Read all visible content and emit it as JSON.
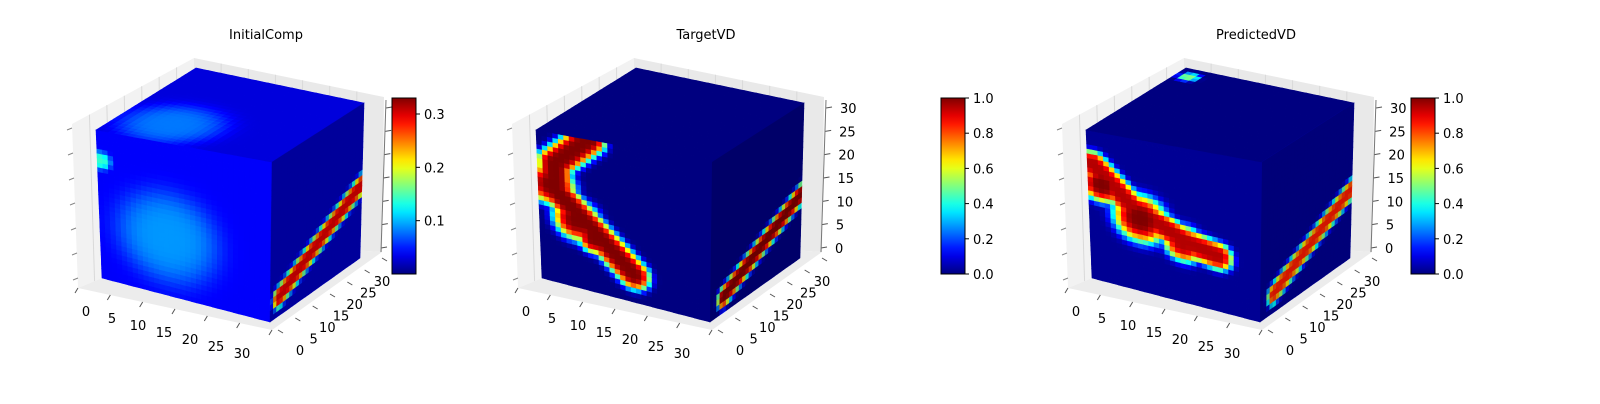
{
  "chart_data": [
    {
      "type": "heatmap",
      "title": "InitialComp",
      "colormap": "jet",
      "colorbar": {
        "min": 0,
        "max": 0.33,
        "ticks": [
          "0.1",
          "0.2",
          "0.3"
        ],
        "tick_values": [
          0.1,
          0.2,
          0.3
        ]
      },
      "x_ticks": [
        "0",
        "5",
        "10",
        "15",
        "20",
        "25",
        "30"
      ],
      "y_ticks": [
        "0",
        "5",
        "10",
        "15",
        "20",
        "25",
        "30"
      ],
      "z_ticks": [],
      "xlim": [
        0,
        32
      ],
      "ylim": [
        0,
        32
      ],
      "zlim": [
        0,
        32
      ],
      "surfaces": {
        "front_base_value": 0.04,
        "front_blobs": [
          {
            "u": 0.4,
            "v": 0.38,
            "r": 0.3,
            "value": 0.09
          },
          {
            "u": 0.02,
            "v": 0.8,
            "r": 0.06,
            "value": 0.14
          }
        ],
        "front_band": null,
        "top_base_value": 0.03,
        "top_blobs": [
          {
            "u": 0.3,
            "v": 0.25,
            "r": 0.28,
            "value": 0.08
          }
        ],
        "right_base_value": 0.02,
        "right_band": {
          "u0": 0.1,
          "v0": 0.12,
          "u1": 1.0,
          "v1": 0.48,
          "width": 0.07,
          "value": 0.3
        }
      }
    },
    {
      "type": "heatmap",
      "title": "TargetVD",
      "colormap": "jet",
      "colorbar": {
        "min": 0,
        "max": 1.0,
        "ticks": [
          "0.0",
          "0.2",
          "0.4",
          "0.6",
          "0.8",
          "1.0"
        ],
        "tick_values": [
          0,
          0.2,
          0.4,
          0.6,
          0.8,
          1.0
        ]
      },
      "x_ticks": [
        "0",
        "5",
        "10",
        "15",
        "20",
        "25",
        "30"
      ],
      "y_ticks": [
        "0",
        "5",
        "10",
        "15",
        "20",
        "25",
        "30"
      ],
      "z_ticks": [
        "0",
        "5",
        "10",
        "15",
        "20",
        "25",
        "30"
      ],
      "xlim": [
        0,
        32
      ],
      "ylim": [
        0,
        32
      ],
      "zlim": [
        0,
        32
      ],
      "surfaces": {
        "front_base_value": 0.0,
        "front_blobs": [
          {
            "u": 0.08,
            "v": 0.65,
            "r": 0.14,
            "value": 1.0
          },
          {
            "u": 0.22,
            "v": 0.45,
            "r": 0.14,
            "value": 1.0
          },
          {
            "u": 0.32,
            "v": 0.35,
            "r": 0.1,
            "value": 1.0
          }
        ],
        "front_band": {
          "points": [
            [
              0.3,
              1.0
            ],
            [
              0.1,
              0.8
            ],
            [
              0.1,
              0.62
            ],
            [
              0.3,
              0.42
            ],
            [
              0.55,
              0.18
            ]
          ],
          "width": 0.1,
          "value": 1.0
        },
        "top_base_value": 0.0,
        "top_blobs": [],
        "right_base_value": 0.0,
        "right_band": {
          "u0": 0.15,
          "v0": 0.1,
          "u1": 1.0,
          "v1": 0.42,
          "width": 0.07,
          "value": 1.0
        }
      }
    },
    {
      "type": "heatmap",
      "title": "PredictedVD",
      "colormap": "jet",
      "colorbar": {
        "min": 0,
        "max": 1.0,
        "ticks": [
          "0.0",
          "0.2",
          "0.4",
          "0.6",
          "0.8",
          "1.0"
        ],
        "tick_values": [
          0,
          0.2,
          0.4,
          0.6,
          0.8,
          1.0
        ]
      },
      "x_ticks": [
        "0",
        "5",
        "10",
        "15",
        "20",
        "25",
        "30"
      ],
      "y_ticks": [
        "0",
        "5",
        "10",
        "15",
        "20",
        "25",
        "30"
      ],
      "z_ticks": [
        "0",
        "5",
        "10",
        "15",
        "20",
        "25",
        "30"
      ],
      "xlim": [
        0,
        32
      ],
      "ylim": [
        0,
        32
      ],
      "zlim": [
        0,
        32
      ],
      "surfaces": {
        "front_base_value": 0.02,
        "front_blobs": [
          {
            "u": 0.08,
            "v": 0.65,
            "r": 0.12,
            "value": 1.0
          },
          {
            "u": 0.3,
            "v": 0.48,
            "r": 0.16,
            "value": 1.0
          },
          {
            "u": 0.55,
            "v": 0.38,
            "r": 0.12,
            "value": 0.95
          }
        ],
        "front_band": {
          "points": [
            [
              0.03,
              0.78
            ],
            [
              0.25,
              0.55
            ],
            [
              0.55,
              0.4
            ],
            [
              0.75,
              0.35
            ]
          ],
          "width": 0.09,
          "value": 0.95
        },
        "top_base_value": 0.0,
        "top_blobs": [
          {
            "u": 0.08,
            "v": 0.9,
            "r": 0.06,
            "value": 0.5
          }
        ],
        "right_base_value": 0.02,
        "right_band": {
          "u0": 0.15,
          "v0": 0.12,
          "u1": 1.0,
          "v1": 0.45,
          "width": 0.07,
          "value": 0.85
        }
      }
    }
  ]
}
